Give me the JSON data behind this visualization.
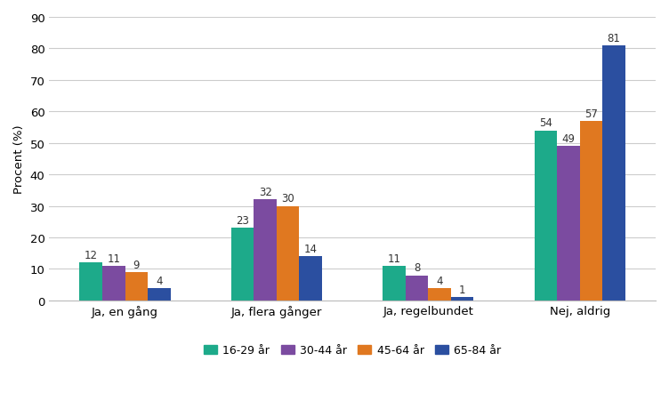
{
  "categories": [
    "Ja, en gång",
    "Ja, flera gånger",
    "Ja, regelbundet",
    "Nej, aldrig"
  ],
  "series": {
    "16-29 år": [
      12,
      23,
      11,
      54
    ],
    "30-44 år": [
      11,
      32,
      8,
      49
    ],
    "45-64 år": [
      9,
      30,
      4,
      57
    ],
    "65-84 år": [
      4,
      14,
      1,
      81
    ]
  },
  "colors": {
    "16-29 år": "#1DAA8A",
    "30-44 år": "#7B4BA0",
    "45-64 år": "#E07820",
    "65-84 år": "#2B4FA0"
  },
  "ylabel": "Procent (%)",
  "ylim": [
    0,
    90
  ],
  "yticks": [
    0,
    10,
    20,
    30,
    40,
    50,
    60,
    70,
    80,
    90
  ],
  "bar_width": 0.15,
  "label_fontsize": 8.5,
  "axis_fontsize": 9.5,
  "legend_fontsize": 9,
  "background_color": "#ffffff"
}
